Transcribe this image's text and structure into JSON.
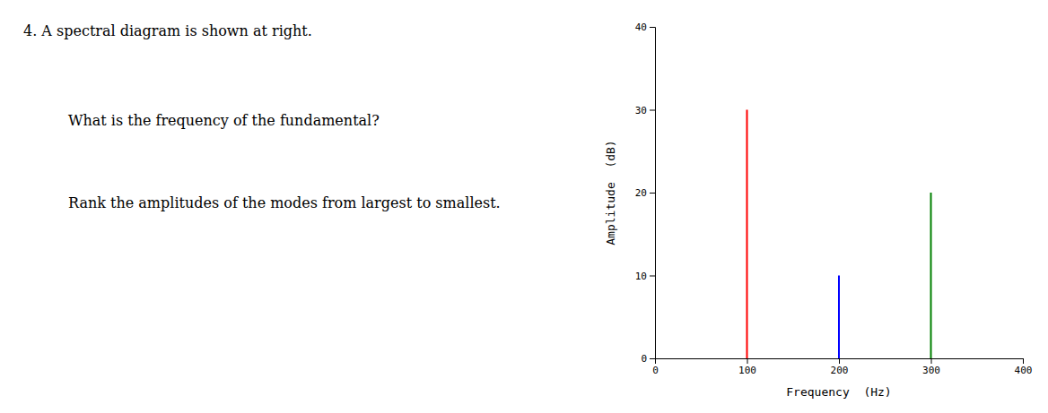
{
  "chart_data": {
    "type": "vlines",
    "annotations": [
      "4.   A spectral diagram is shown at right.",
      "What is the frequency of the fundamental?",
      "Rank the amplitudes of the modes from largest to smallest."
    ],
    "xlabel": "Frequency  (Hz)",
    "ylabel": "Amplitude  (dB)",
    "x": [
      100,
      200,
      300
    ],
    "values": [
      30,
      10,
      20
    ],
    "colors": [
      "red",
      "blue",
      "green"
    ],
    "xlim": [
      0,
      400
    ],
    "ylim": [
      0,
      40
    ],
    "xticks": [
      0,
      100,
      200,
      300,
      400
    ],
    "yticks": [
      0,
      10,
      20,
      30,
      40
    ],
    "grid": false
  }
}
